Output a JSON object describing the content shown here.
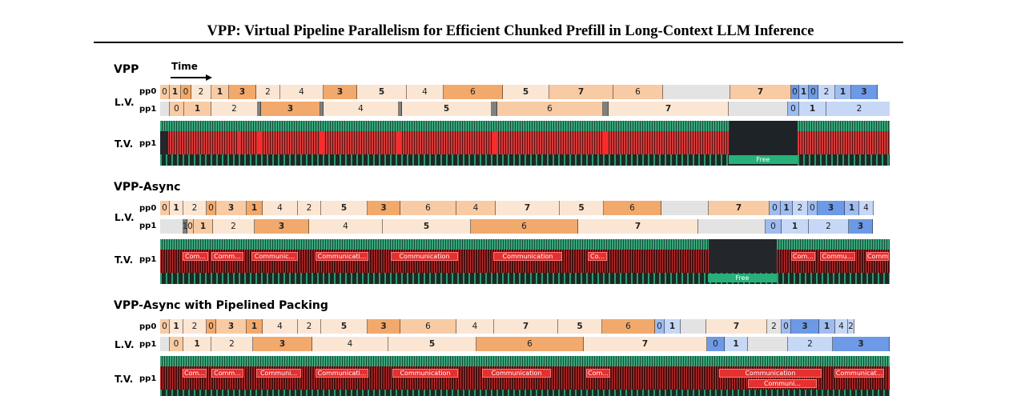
{
  "title": "VPP: Virtual Pipeline Parallelism for Efficient Chunked Prefill in Long-Context LLM Inference",
  "time_label": "Time",
  "labels": {
    "lv": "L.V.",
    "tv": "T.V.",
    "pp0": "pp0",
    "pp1": "pp1"
  },
  "colors": {
    "c1": "#fbe6d4",
    "c2": "#f8cba4",
    "c3": "#f2a96c",
    "gap": "#e3e3e3",
    "b1": "#c6d8f6",
    "b2": "#9ebcef",
    "b3": "#6d9ae6",
    "sep": "#808080"
  },
  "sections": [
    {
      "title": "VPP",
      "free_label": "Free",
      "pp0": [
        {
          "t": "0",
          "w": 12,
          "c": "c2"
        },
        {
          "t": "1",
          "w": 14,
          "c": "c2",
          "b": true
        },
        {
          "t": "0",
          "w": 13,
          "c": "c3"
        },
        {
          "t": "2",
          "w": 25,
          "c": "c1"
        },
        {
          "t": "1",
          "w": 22,
          "c": "c2",
          "b": true
        },
        {
          "t": "3",
          "w": 34,
          "c": "c3",
          "b": true
        },
        {
          "t": "2",
          "w": 30,
          "c": "c1"
        },
        {
          "t": "4",
          "w": 54,
          "c": "c1"
        },
        {
          "t": "3",
          "w": 42,
          "c": "c3",
          "b": true
        },
        {
          "t": "5",
          "w": 62,
          "c": "c1",
          "b": true
        },
        {
          "t": "4",
          "w": 46,
          "c": "c1"
        },
        {
          "t": "6",
          "w": 74,
          "c": "c3"
        },
        {
          "t": "5",
          "w": 58,
          "c": "c1",
          "b": true
        },
        {
          "t": "7",
          "w": 80,
          "c": "c2",
          "b": true
        },
        {
          "t": "6",
          "w": 62,
          "c": "c2"
        },
        {
          "t": "",
          "w": 84,
          "c": "gap"
        },
        {
          "t": "7",
          "w": 76,
          "c": "c2",
          "b": true
        },
        {
          "t": "0",
          "w": 10,
          "c": "b3"
        },
        {
          "t": "1",
          "w": 12,
          "c": "b2",
          "b": true
        },
        {
          "t": "0",
          "w": 12,
          "c": "b3"
        },
        {
          "t": "2",
          "w": 21,
          "c": "b1"
        },
        {
          "t": "1",
          "w": 20,
          "c": "b2",
          "b": true
        },
        {
          "t": "3",
          "w": 33,
          "c": "b3",
          "b": true
        }
      ],
      "pp1": [
        {
          "t": "",
          "w": 12,
          "c": "gap"
        },
        {
          "t": "0",
          "w": 18,
          "c": "c2"
        },
        {
          "t": "1",
          "w": 34,
          "c": "c2",
          "b": true
        },
        {
          "t": "2",
          "w": 58,
          "c": "c1"
        },
        {
          "t": "",
          "w": 4,
          "c": "sep"
        },
        {
          "t": "3",
          "w": 74,
          "c": "c3",
          "b": true
        },
        {
          "t": "",
          "w": 4,
          "c": "sep"
        },
        {
          "t": "4",
          "w": 94,
          "c": "c1"
        },
        {
          "t": "",
          "w": 4,
          "c": "sep"
        },
        {
          "t": "5",
          "w": 112,
          "c": "c1",
          "b": true
        },
        {
          "t": "",
          "w": 7,
          "c": "sep"
        },
        {
          "t": "6",
          "w": 132,
          "c": "c2"
        },
        {
          "t": "",
          "w": 7,
          "c": "sep"
        },
        {
          "t": "7",
          "w": 150,
          "c": "c1",
          "b": true
        },
        {
          "t": "",
          "w": 74,
          "c": "gap"
        },
        {
          "t": "0",
          "w": 14,
          "c": "b2"
        },
        {
          "t": "1",
          "w": 34,
          "c": "b1",
          "b": true
        },
        {
          "t": "2",
          "w": 83,
          "c": "b1"
        }
      ],
      "comms": []
    },
    {
      "title": "VPP-Async",
      "free_label": "Free",
      "pp0": [
        {
          "t": "0",
          "w": 12,
          "c": "c2"
        },
        {
          "t": "1",
          "w": 17,
          "c": "c1",
          "b": true
        },
        {
          "t": "2",
          "w": 29,
          "c": "c1"
        },
        {
          "t": "0",
          "w": 12,
          "c": "c3"
        },
        {
          "t": "3",
          "w": 38,
          "c": "c2",
          "b": true
        },
        {
          "t": "1",
          "w": 20,
          "c": "c3",
          "b": true
        },
        {
          "t": "4",
          "w": 44,
          "c": "c1"
        },
        {
          "t": "2",
          "w": 29,
          "c": "c1"
        },
        {
          "t": "5",
          "w": 58,
          "c": "c1",
          "b": true
        },
        {
          "t": "3",
          "w": 41,
          "c": "c3",
          "b": true
        },
        {
          "t": "6",
          "w": 70,
          "c": "c2"
        },
        {
          "t": "4",
          "w": 49,
          "c": "c2"
        },
        {
          "t": "7",
          "w": 80,
          "c": "c1",
          "b": true
        },
        {
          "t": "5",
          "w": 55,
          "c": "c1",
          "b": true
        },
        {
          "t": "6",
          "w": 72,
          "c": "c3"
        },
        {
          "t": "",
          "w": 59,
          "c": "gap"
        },
        {
          "t": "7",
          "w": 76,
          "c": "c2",
          "b": true
        },
        {
          "t": "0",
          "w": 14,
          "c": "b2"
        },
        {
          "t": "1",
          "w": 15,
          "c": "b2",
          "b": true
        },
        {
          "t": "2",
          "w": 19,
          "c": "b1"
        },
        {
          "t": "0",
          "w": 12,
          "c": "b2"
        },
        {
          "t": "3",
          "w": 34,
          "c": "b3",
          "b": true
        },
        {
          "t": "1",
          "w": 18,
          "c": "b2",
          "b": true
        },
        {
          "t": "4",
          "w": 18,
          "c": "b1"
        }
      ],
      "pp1": [
        {
          "t": "",
          "w": 29,
          "c": "gap"
        },
        {
          "t": "1",
          "w": 5,
          "c": "sep"
        },
        {
          "t": "0",
          "w": 8,
          "c": "c2"
        },
        {
          "t": "1",
          "w": 24,
          "c": "c2",
          "b": true
        },
        {
          "t": "2",
          "w": 52,
          "c": "c1"
        },
        {
          "t": "3",
          "w": 68,
          "c": "c3",
          "b": true
        },
        {
          "t": "4",
          "w": 92,
          "c": "c1"
        },
        {
          "t": "5",
          "w": 110,
          "c": "c1",
          "b": true
        },
        {
          "t": "6",
          "w": 134,
          "c": "c3"
        },
        {
          "t": "7",
          "w": 150,
          "c": "c1",
          "b": true
        },
        {
          "t": "",
          "w": 84,
          "c": "gap"
        },
        {
          "t": "0",
          "w": 20,
          "c": "b2"
        },
        {
          "t": "1",
          "w": 34,
          "c": "b1",
          "b": true
        },
        {
          "t": "2",
          "w": 50,
          "c": "b1"
        },
        {
          "t": "3",
          "w": 30,
          "c": "b3",
          "b": true
        }
      ],
      "comms": [
        {
          "t": "Com..."
        },
        {
          "t": "Comm..."
        },
        {
          "t": "Communic..."
        },
        {
          "t": "Communicati..."
        },
        {
          "t": "Communication"
        },
        {
          "t": "Communication"
        },
        {
          "t": "Co..."
        },
        {
          "t": "Com..."
        },
        {
          "t": "Commu..."
        },
        {
          "t": "Comm"
        }
      ]
    },
    {
      "title": "VPP-Async with Pipelined Packing",
      "pp0": [
        {
          "t": "0",
          "w": 12,
          "c": "c2"
        },
        {
          "t": "1",
          "w": 17,
          "c": "c1",
          "b": true
        },
        {
          "t": "2",
          "w": 29,
          "c": "c1"
        },
        {
          "t": "0",
          "w": 12,
          "c": "c3"
        },
        {
          "t": "3",
          "w": 38,
          "c": "c2",
          "b": true
        },
        {
          "t": "1",
          "w": 20,
          "c": "c3",
          "b": true
        },
        {
          "t": "4",
          "w": 44,
          "c": "c1"
        },
        {
          "t": "2",
          "w": 29,
          "c": "c1"
        },
        {
          "t": "5",
          "w": 58,
          "c": "c1",
          "b": true
        },
        {
          "t": "3",
          "w": 41,
          "c": "c3",
          "b": true
        },
        {
          "t": "6",
          "w": 70,
          "c": "c2"
        },
        {
          "t": "4",
          "w": 47,
          "c": "c1"
        },
        {
          "t": "7",
          "w": 80,
          "c": "c1",
          "b": true
        },
        {
          "t": "5",
          "w": 55,
          "c": "c1",
          "b": true
        },
        {
          "t": "6",
          "w": 66,
          "c": "c3"
        },
        {
          "t": "0",
          "w": 12,
          "c": "b2"
        },
        {
          "t": "1",
          "w": 20,
          "c": "b1",
          "b": true
        },
        {
          "t": "",
          "w": 32,
          "c": "gap"
        },
        {
          "t": "7",
          "w": 76,
          "c": "c1",
          "b": true
        },
        {
          "t": "2",
          "w": 18,
          "c": "gap"
        },
        {
          "t": "0",
          "w": 12,
          "c": "b2"
        },
        {
          "t": "3",
          "w": 35,
          "c": "b3",
          "b": true
        },
        {
          "t": "1",
          "w": 20,
          "c": "b2",
          "b": true
        },
        {
          "t": "4",
          "w": 16,
          "c": "b1"
        },
        {
          "t": "2",
          "w": 8,
          "c": "b1"
        }
      ],
      "pp1": [
        {
          "t": "",
          "w": 12,
          "c": "gap"
        },
        {
          "t": "0",
          "w": 17,
          "c": "c2"
        },
        {
          "t": "1",
          "w": 35,
          "c": "c1",
          "b": true
        },
        {
          "t": "2",
          "w": 52,
          "c": "c1"
        },
        {
          "t": "3",
          "w": 74,
          "c": "c3",
          "b": true
        },
        {
          "t": "4",
          "w": 95,
          "c": "c1"
        },
        {
          "t": "5",
          "w": 110,
          "c": "c1",
          "b": true
        },
        {
          "t": "6",
          "w": 134,
          "c": "c3"
        },
        {
          "t": "7",
          "w": 154,
          "c": "c1",
          "b": true
        },
        {
          "t": "0",
          "w": 22,
          "c": "b3"
        },
        {
          "t": "1",
          "w": 29,
          "c": "b1",
          "b": true
        },
        {
          "t": "",
          "w": 50,
          "c": "gap"
        },
        {
          "t": "2",
          "w": 56,
          "c": "b1"
        },
        {
          "t": "3",
          "w": 71,
          "c": "b3",
          "b": true
        }
      ],
      "comms": [
        {
          "t": "Com..."
        },
        {
          "t": "Comm..."
        },
        {
          "t": "Communi..."
        },
        {
          "t": "Communicati..."
        },
        {
          "t": "Communication"
        },
        {
          "t": "Communication"
        },
        {
          "t": "Com..."
        },
        {
          "t": "Communication"
        },
        {
          "t": "Communicat..."
        },
        {
          "t": "Communi..."
        }
      ]
    }
  ]
}
